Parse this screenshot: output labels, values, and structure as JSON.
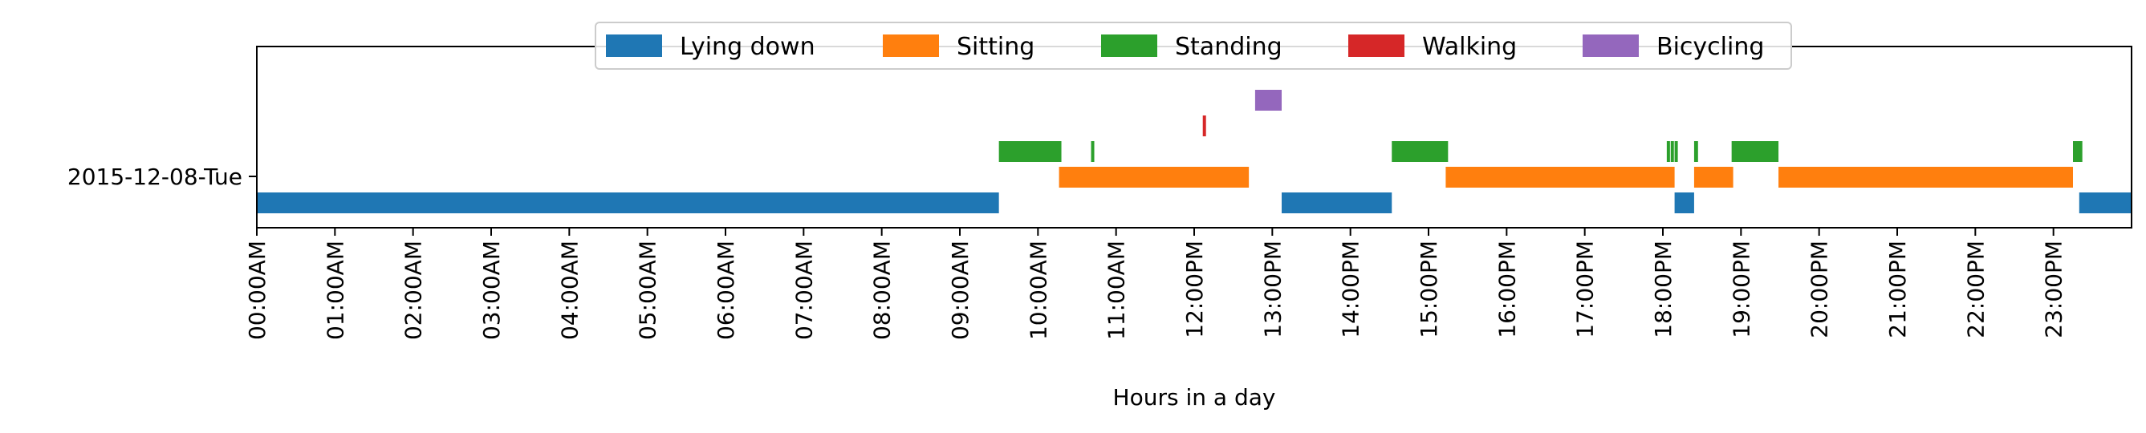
{
  "chart_data": {
    "type": "timeline",
    "xlabel": "Hours in a day",
    "ylabel": "",
    "xlim": [
      0,
      24
    ],
    "x_ticks": [
      "00:00AM",
      "01:00AM",
      "02:00AM",
      "03:00AM",
      "04:00AM",
      "05:00AM",
      "06:00AM",
      "07:00AM",
      "08:00AM",
      "09:00AM",
      "10:00AM",
      "11:00AM",
      "12:00PM",
      "13:00PM",
      "14:00PM",
      "15:00PM",
      "16:00PM",
      "17:00PM",
      "18:00PM",
      "19:00PM",
      "20:00PM",
      "21:00PM",
      "22:00PM",
      "23:00PM"
    ],
    "categories": [
      "2015-12-08-Tue"
    ],
    "grid": false,
    "legend_position": "top-center",
    "series": [
      {
        "name": "Lying down",
        "color": "#1f77b4",
        "intervals": [
          [
            0.0,
            9.5
          ],
          [
            13.12,
            14.53
          ],
          [
            18.15,
            18.4
          ],
          [
            23.33,
            24.0
          ]
        ]
      },
      {
        "name": "Sitting",
        "color": "#ff7f0e",
        "intervals": [
          [
            10.27,
            12.7
          ],
          [
            15.22,
            18.15
          ],
          [
            18.4,
            18.9
          ],
          [
            19.48,
            23.25
          ]
        ]
      },
      {
        "name": "Standing",
        "color": "#2ca02c",
        "intervals": [
          [
            9.5,
            10.3
          ],
          [
            10.68,
            10.72
          ],
          [
            14.53,
            15.25
          ],
          [
            18.05,
            18.08
          ],
          [
            18.1,
            18.13
          ],
          [
            18.15,
            18.18
          ],
          [
            18.4,
            18.45
          ],
          [
            18.88,
            19.48
          ],
          [
            23.25,
            23.37
          ]
        ]
      },
      {
        "name": "Walking",
        "color": "#d62728",
        "intervals": [
          [
            12.11,
            12.14
          ]
        ]
      },
      {
        "name": "Bicycling",
        "color": "#9467bd",
        "intervals": [
          [
            12.78,
            13.12
          ]
        ]
      }
    ]
  }
}
